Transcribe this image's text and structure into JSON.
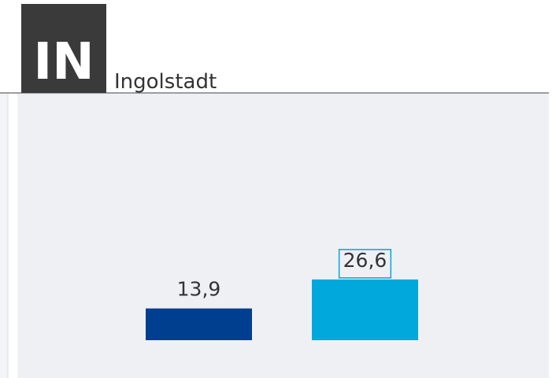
{
  "header": {
    "logo": "IN",
    "title": "Ingolstadt"
  },
  "chart_data": {
    "type": "bar",
    "categories": [
      null,
      null
    ],
    "values": [
      13.9,
      26.6
    ],
    "value_labels": [
      "13,9",
      "26,6"
    ],
    "colors": [
      "#003f8f",
      "#00a8dc"
    ],
    "highlight": 1
  }
}
